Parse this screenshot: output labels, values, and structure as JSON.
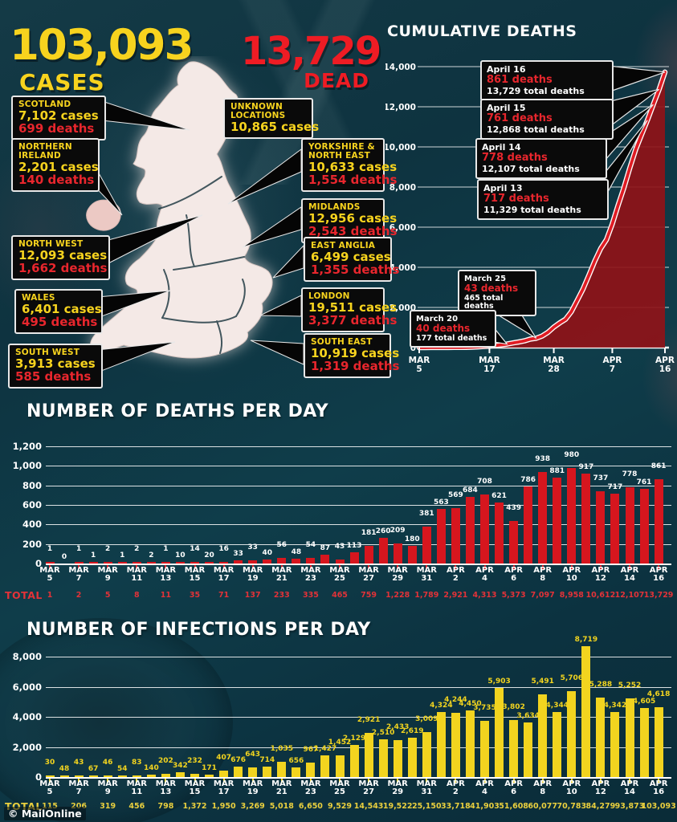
{
  "page": {
    "credit": "© MailOnline"
  },
  "header": {
    "cases_value": "103,093",
    "cases_label": "CASES",
    "dead_value": "13,729",
    "dead_label": "DEAD"
  },
  "map": {
    "regions": [
      {
        "id": "scotland",
        "name": "SCOTLAND",
        "cases": "7,102 cases",
        "deaths": "699 deaths"
      },
      {
        "id": "northern-ireland",
        "name": "NORTHERN IRELAND",
        "cases": "2,201 cases",
        "deaths": "140 deaths"
      },
      {
        "id": "north-west",
        "name": "NORTH WEST",
        "cases": "12,093 cases",
        "deaths": "1,662 deaths"
      },
      {
        "id": "wales",
        "name": "WALES",
        "cases": "6,401 cases",
        "deaths": "495 deaths"
      },
      {
        "id": "south-west",
        "name": "SOUTH WEST",
        "cases": "3,913 cases",
        "deaths": "585 deaths"
      },
      {
        "id": "unknown",
        "name": "UNKNOWN LOCATIONS",
        "cases": "10,865 cases",
        "deaths": null
      },
      {
        "id": "yorkshire-north-east",
        "name": "YORKSHIRE & NORTH EAST",
        "cases": "10,633 cases",
        "deaths": "1,554 deaths"
      },
      {
        "id": "midlands",
        "name": "MIDLANDS",
        "cases": "12,956 cases",
        "deaths": "2,543 deaths"
      },
      {
        "id": "east-anglia",
        "name": "EAST ANGLIA",
        "cases": "6,499 cases",
        "deaths": "1,355 deaths"
      },
      {
        "id": "london",
        "name": "LONDON",
        "cases": "19,511 cases",
        "deaths": "3,377 deaths"
      },
      {
        "id": "south-east",
        "name": "SOUTH EAST",
        "cases": "10,919 cases",
        "deaths": "1,319 deaths"
      }
    ]
  },
  "chart_data": [
    {
      "type": "area",
      "title": "CUMULATIVE DEATHS",
      "xlabel": "",
      "ylabel": "",
      "ylim": [
        0,
        14000
      ],
      "y_ticks": [
        "14,000",
        "12,000",
        "10,000",
        "8,000",
        "6,000",
        "4,000",
        "2,000",
        "0"
      ],
      "x_tick_labels": [
        "MAR 5",
        "MAR 17",
        "MAR 28",
        "APR 7",
        "APR 16"
      ],
      "x_tick_days": [
        0,
        12,
        23,
        33,
        42
      ],
      "series_color": "#e01c24",
      "outline_color": "#ffffff",
      "area_color": "#8f1218",
      "values": [
        1,
        1,
        2,
        3,
        5,
        6,
        8,
        10,
        11,
        21,
        35,
        55,
        71,
        104,
        137,
        177,
        233,
        281,
        335,
        422,
        465,
        578,
        759,
        1019,
        1228,
        1408,
        1789,
        2352,
        2921,
        3605,
        4313,
        4934,
        5373,
        6159,
        7097,
        7978,
        8958,
        9875,
        10612,
        11329,
        12107,
        12868,
        13729
      ],
      "annotations": [
        {
          "id": "apr16",
          "date": "April 16",
          "deaths": "861 deaths",
          "total": "13,729 total deaths",
          "day": 42,
          "value": 13729
        },
        {
          "id": "apr15",
          "date": "April 15",
          "deaths": "761 deaths",
          "total": "12,868 total deaths",
          "day": 41,
          "value": 12868
        },
        {
          "id": "apr14",
          "date": "April 14",
          "deaths": "778 deaths",
          "total": "12,107 total deaths",
          "day": 40,
          "value": 12107
        },
        {
          "id": "apr13",
          "date": "April 13",
          "deaths": "717 deaths",
          "total": "11,329 total deaths",
          "day": 39,
          "value": 11329
        },
        {
          "id": "mar25",
          "date": "March 25",
          "deaths": "43 deaths",
          "total": "465 total deaths",
          "day": 20,
          "value": 465
        },
        {
          "id": "mar20",
          "date": "March 20",
          "deaths": "40 deaths",
          "total": "177 total deaths",
          "day": 15,
          "value": 177
        }
      ]
    },
    {
      "type": "bar",
      "title": "NUMBER OF DEATHS PER DAY",
      "ylim": [
        0,
        1200
      ],
      "y_ticks": [
        "1,200",
        "1,000",
        "800",
        "600",
        "400",
        "200",
        "0"
      ],
      "bar_color": "#d6161e",
      "value_label_color": "#ffffff",
      "total_label": "TOTAL",
      "total_color": "#e23238",
      "x_tick_labels": [
        "MAR 5",
        "MAR 7",
        "MAR 9",
        "MAR 11",
        "MAR 13",
        "MAR 15",
        "MAR 17",
        "MAR 19",
        "MAR 21",
        "MAR 23",
        "MAR 25",
        "MAR 27",
        "MAR 29",
        "MAR 31",
        "APR 2",
        "APR 4",
        "APR 6",
        "APR 8",
        "APR 10",
        "APR 12",
        "APR 14",
        "APR 16"
      ],
      "values": [
        1,
        0,
        1,
        1,
        2,
        1,
        2,
        2,
        1,
        10,
        14,
        20,
        16,
        33,
        33,
        40,
        56,
        48,
        54,
        87,
        43,
        113,
        181,
        260,
        209,
        180,
        381,
        563,
        569,
        684,
        708,
        621,
        439,
        786,
        938,
        881,
        980,
        917,
        737,
        717,
        778,
        761,
        861
      ],
      "totals": [
        "1",
        "2",
        "5",
        "8",
        "11",
        "35",
        "71",
        "137",
        "233",
        "335",
        "465",
        "759",
        "1,228",
        "1,789",
        "2,921",
        "4,313",
        "5,373",
        "7,097",
        "8,958",
        "10,612",
        "12,107",
        "13,729"
      ]
    },
    {
      "type": "bar",
      "title": "NUMBER OF INFECTIONS PER DAY",
      "ylim": [
        0,
        8000
      ],
      "y_ticks": [
        "8,000",
        "6,000",
        "4,000",
        "2,000",
        "0"
      ],
      "bar_color": "#f2d41f",
      "value_label_color": "#f2d41f",
      "total_label": "TOTAL",
      "total_color": "#e9cf3e",
      "x_tick_labels": [
        "MAR 5",
        "MAR 7",
        "MAR 9",
        "MAR 11",
        "MAR 13",
        "MAR 15",
        "MAR 17",
        "MAR 19",
        "MAR 21",
        "MAR 23",
        "MAR 25",
        "MAR 27",
        "MAR 29",
        "MAR 31",
        "APR 2",
        "APR 4",
        "APR 6",
        "APR 8",
        "APR 10",
        "APR 12",
        "APR 14",
        "APR 16"
      ],
      "values": [
        30,
        48,
        43,
        67,
        46,
        54,
        83,
        140,
        202,
        342,
        232,
        171,
        407,
        676,
        643,
        714,
        1035,
        656,
        967,
        1427,
        1452,
        2129,
        2921,
        2510,
        2433,
        2619,
        3009,
        4324,
        4244,
        4450,
        3735,
        5903,
        3802,
        3634,
        5491,
        4344,
        5706,
        8719,
        5288,
        4342,
        5252,
        4605,
        4618
      ],
      "totals": [
        "115",
        "206",
        "319",
        "456",
        "798",
        "1,372",
        "1,950",
        "3,269",
        "5,018",
        "6,650",
        "9,529",
        "14,543",
        "19,522",
        "25,150",
        "33,718",
        "41,903",
        "51,608",
        "60,077",
        "70,783",
        "84,279",
        "93,873",
        "103,093"
      ]
    }
  ]
}
